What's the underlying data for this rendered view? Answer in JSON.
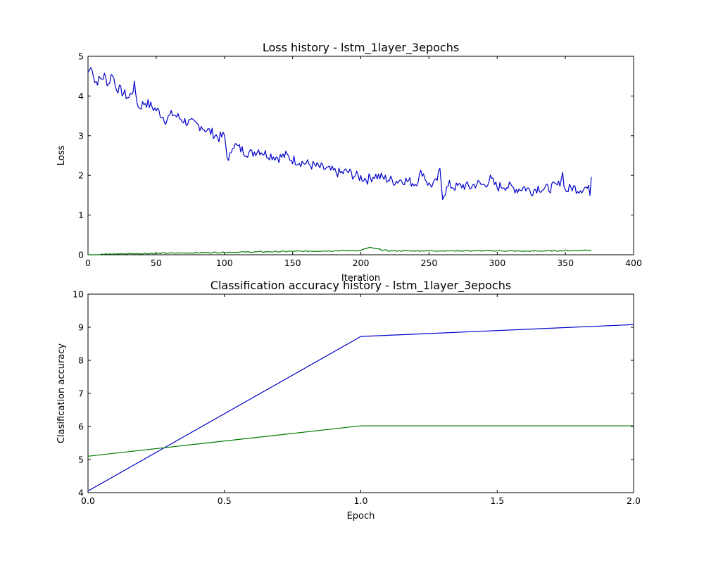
{
  "chart_data": [
    {
      "type": "line",
      "title": "Loss history - lstm_1layer_3epochs",
      "xlabel": "Iteration",
      "ylabel": "Loss",
      "xlim": [
        0,
        400
      ],
      "ylim": [
        0,
        5
      ],
      "xticks": [
        0,
        50,
        100,
        150,
        200,
        250,
        300,
        350,
        400
      ],
      "yticks": [
        0,
        1,
        2,
        3,
        4,
        5
      ],
      "grid": false,
      "series": [
        {
          "color": "#0000cc",
          "x_start": 0,
          "x_step": 1,
          "points_sampled": [
            [
              0,
              4.6
            ],
            [
              3,
              4.75
            ],
            [
              5,
              4.35
            ],
            [
              8,
              4.4
            ],
            [
              12,
              4.5
            ],
            [
              15,
              4.3
            ],
            [
              18,
              4.6
            ],
            [
              20,
              4.25
            ],
            [
              25,
              4.1
            ],
            [
              30,
              3.95
            ],
            [
              34,
              4.25
            ],
            [
              37,
              3.7
            ],
            [
              42,
              3.85
            ],
            [
              48,
              3.7
            ],
            [
              52,
              3.6
            ],
            [
              57,
              3.4
            ],
            [
              62,
              3.55
            ],
            [
              67,
              3.45
            ],
            [
              72,
              3.35
            ],
            [
              77,
              3.3
            ],
            [
              82,
              3.25
            ],
            [
              87,
              3.15
            ],
            [
              92,
              3.05
            ],
            [
              96,
              2.95
            ],
            [
              100,
              3.0
            ],
            [
              103,
              2.3
            ],
            [
              106,
              2.8
            ],
            [
              110,
              2.7
            ],
            [
              115,
              2.6
            ],
            [
              120,
              2.55
            ],
            [
              125,
              2.65
            ],
            [
              130,
              2.55
            ],
            [
              135,
              2.5
            ],
            [
              140,
              2.45
            ],
            [
              145,
              2.5
            ],
            [
              150,
              2.4
            ],
            [
              155,
              2.35
            ],
            [
              160,
              2.3
            ],
            [
              165,
              2.25
            ],
            [
              170,
              2.2
            ],
            [
              175,
              2.15
            ],
            [
              180,
              2.1
            ],
            [
              185,
              2.05
            ],
            [
              190,
              2.1
            ],
            [
              195,
              2.0
            ],
            [
              200,
              1.95
            ],
            [
              205,
              1.9
            ],
            [
              210,
              2.0
            ],
            [
              215,
              1.95
            ],
            [
              220,
              1.9
            ],
            [
              225,
              1.85
            ],
            [
              230,
              1.9
            ],
            [
              235,
              1.85
            ],
            [
              240,
              1.8
            ],
            [
              245,
              2.1
            ],
            [
              250,
              1.75
            ],
            [
              255,
              1.8
            ],
            [
              258,
              2.1
            ],
            [
              260,
              1.5
            ],
            [
              265,
              1.75
            ],
            [
              270,
              1.7
            ],
            [
              275,
              1.75
            ],
            [
              280,
              1.7
            ],
            [
              285,
              1.8
            ],
            [
              290,
              1.75
            ],
            [
              295,
              1.9
            ],
            [
              300,
              1.7
            ],
            [
              305,
              1.75
            ],
            [
              310,
              1.7
            ],
            [
              315,
              1.65
            ],
            [
              320,
              1.7
            ],
            [
              325,
              1.6
            ],
            [
              330,
              1.7
            ],
            [
              335,
              1.65
            ],
            [
              340,
              1.7
            ],
            [
              345,
              1.75
            ],
            [
              348,
              2.05
            ],
            [
              350,
              1.6
            ],
            [
              355,
              1.7
            ],
            [
              360,
              1.65
            ],
            [
              365,
              1.7
            ],
            [
              368,
              1.6
            ],
            [
              369,
              2.0
            ]
          ]
        },
        {
          "color": "#007a00",
          "points_sampled": [
            [
              0,
              0.0
            ],
            [
              20,
              0.02
            ],
            [
              40,
              0.03
            ],
            [
              60,
              0.04
            ],
            [
              80,
              0.05
            ],
            [
              100,
              0.06
            ],
            [
              120,
              0.07
            ],
            [
              140,
              0.08
            ],
            [
              160,
              0.09
            ],
            [
              180,
              0.1
            ],
            [
              200,
              0.11
            ],
            [
              206,
              0.18
            ],
            [
              220,
              0.1
            ],
            [
              240,
              0.1
            ],
            [
              260,
              0.1
            ],
            [
              280,
              0.1
            ],
            [
              300,
              0.1
            ],
            [
              320,
              0.09
            ],
            [
              340,
              0.1
            ],
            [
              360,
              0.11
            ],
            [
              369,
              0.12
            ]
          ]
        }
      ]
    },
    {
      "type": "line",
      "title": "Classification accuracy history - lstm_1layer_3epochs",
      "xlabel": "Epoch",
      "ylabel": "Clasification accuracy",
      "xlim": [
        0.0,
        2.0
      ],
      "ylim": [
        4,
        10
      ],
      "xticks": [
        "0.0",
        "0.5",
        "1.0",
        "1.5",
        "2.0"
      ],
      "yticks": [
        4,
        5,
        6,
        7,
        8,
        9,
        10
      ],
      "grid": false,
      "series": [
        {
          "color": "#0000cc",
          "x": [
            0.0,
            1.0,
            2.0
          ],
          "values": [
            4.05,
            8.72,
            9.08
          ]
        },
        {
          "color": "#007a00",
          "x": [
            0.0,
            1.0,
            2.0
          ],
          "values": [
            5.1,
            6.02,
            6.02
          ]
        }
      ]
    }
  ]
}
